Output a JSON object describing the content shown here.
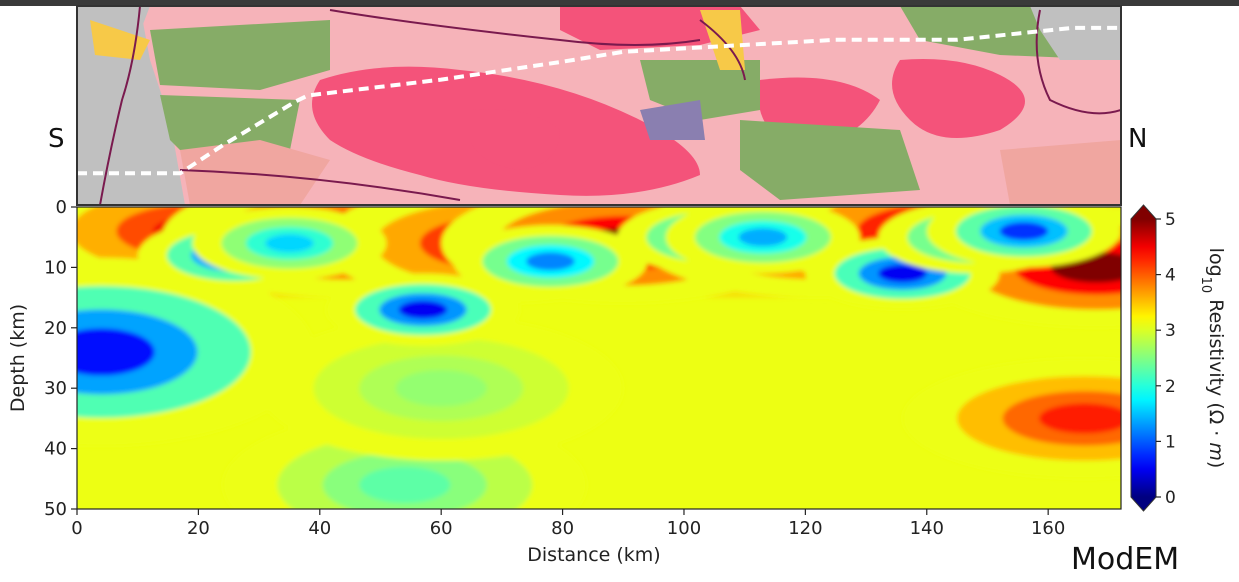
{
  "figure": {
    "top_labels": {
      "south": "S",
      "north": "N"
    },
    "code_label": "ModEM",
    "geology_colors": {
      "granite": "#f4537a",
      "sediment_pink": "#f6b3b9",
      "salmon": "#f0a6a0",
      "green": "#86ac67",
      "gray": "#c0c0c0",
      "yellow": "#f7c948",
      "purple": "#8a7fb0",
      "fault_line": "#7a1a4e",
      "profile_line": "#ffffff"
    }
  },
  "chart_data": {
    "type": "heatmap",
    "title": "",
    "xlabel": "Distance (km)",
    "ylabel": "Depth (km)",
    "xlim": [
      0,
      172
    ],
    "ylim": [
      50,
      0
    ],
    "xticks": [
      0,
      20,
      40,
      60,
      80,
      100,
      120,
      140,
      160
    ],
    "yticks": [
      0,
      10,
      20,
      30,
      40,
      50
    ],
    "colorbar": {
      "label": "log10 Resistivity (Ω · m)",
      "label_parts": {
        "prefix": "log",
        "subscript": "10",
        "main": " Resistivity (Ω · ",
        "unit_var": "m",
        "suffix": ")"
      },
      "range": [
        0,
        5
      ],
      "ticks": [
        0,
        1,
        2,
        3,
        4,
        5
      ],
      "colormap": "jet_reversed",
      "extend": "both"
    },
    "background_log10_resistivity": 3.1,
    "features": [
      {
        "kind": "conductor",
        "x_km": 4,
        "depth_km": 24,
        "log10_rho": 0.6
      },
      {
        "kind": "conductor",
        "x_km": 26,
        "depth_km": 8,
        "log10_rho": 0.7
      },
      {
        "kind": "conductor",
        "x_km": 35,
        "depth_km": 6,
        "log10_rho": 1.6
      },
      {
        "kind": "conductor",
        "x_km": 57,
        "depth_km": 17,
        "log10_rho": 0.5
      },
      {
        "kind": "conductor",
        "x_km": 78,
        "depth_km": 9,
        "log10_rho": 1.2
      },
      {
        "kind": "conductor",
        "x_km": 105,
        "depth_km": 5,
        "log10_rho": 1.2
      },
      {
        "kind": "conductor",
        "x_km": 113,
        "depth_km": 5,
        "log10_rho": 1.4
      },
      {
        "kind": "conductor",
        "x_km": 136,
        "depth_km": 11,
        "log10_rho": 0.5
      },
      {
        "kind": "conductor",
        "x_km": 148,
        "depth_km": 5,
        "log10_rho": 1.2
      },
      {
        "kind": "conductor",
        "x_km": 156,
        "depth_km": 4,
        "log10_rho": 0.8
      },
      {
        "kind": "resistor",
        "x_km": 8,
        "depth_km": 8,
        "log10_rho": 5.0
      },
      {
        "kind": "resistor",
        "x_km": 20,
        "depth_km": 4,
        "log10_rho": 4.5
      },
      {
        "kind": "resistor",
        "x_km": 44,
        "depth_km": 5,
        "log10_rho": 5.0
      },
      {
        "kind": "resistor",
        "x_km": 70,
        "depth_km": 6,
        "log10_rho": 4.6
      },
      {
        "kind": "resistor",
        "x_km": 90,
        "depth_km": 6,
        "log10_rho": 5.0
      },
      {
        "kind": "resistor",
        "x_km": 122,
        "depth_km": 5,
        "log10_rho": 4.6
      },
      {
        "kind": "resistor",
        "x_km": 142,
        "depth_km": 4,
        "log10_rho": 4.8
      },
      {
        "kind": "resistor",
        "x_km": 168,
        "depth_km": 10,
        "log10_rho": 5.0
      },
      {
        "kind": "resistor",
        "x_km": 166,
        "depth_km": 35,
        "log10_rho": 4.3
      },
      {
        "kind": "moderate",
        "x_km": 54,
        "depth_km": 46,
        "log10_rho": 2.3
      },
      {
        "kind": "moderate",
        "x_km": 60,
        "depth_km": 30,
        "log10_rho": 2.6
      }
    ],
    "surface_profile_line": [
      [
        0,
        0.84
      ],
      [
        17,
        0.84
      ],
      [
        24,
        0.7
      ],
      [
        36,
        0.48
      ],
      [
        38,
        0.45
      ],
      [
        60,
        0.37
      ],
      [
        80,
        0.28
      ],
      [
        90,
        0.23
      ],
      [
        125,
        0.17
      ],
      [
        145,
        0.17
      ],
      [
        164,
        0.11
      ],
      [
        172,
        0.11
      ]
    ]
  }
}
